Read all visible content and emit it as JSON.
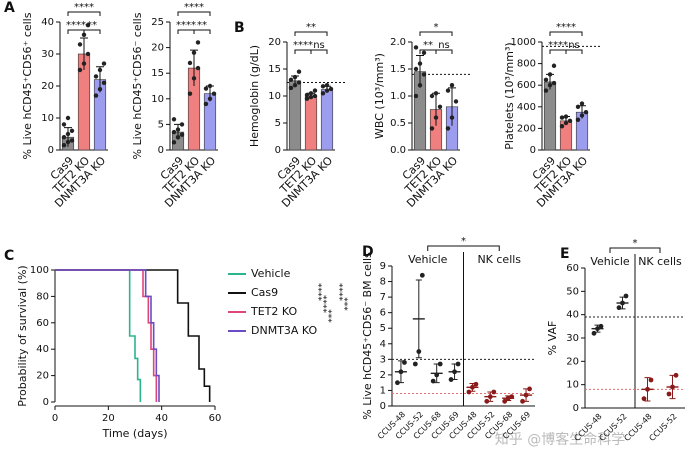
{
  "chart_data": [
    {
      "type": "bar",
      "panel": "A",
      "ylabel": "% Live hCD45⁺CD56⁺ cells",
      "categories": [
        "Cas9",
        "TET2 KO",
        "DNMT3A KO"
      ],
      "colors": [
        "#8c8c8c",
        "#f07f7f",
        "#9d9df0"
      ],
      "values": [
        4,
        30,
        22
      ],
      "errors": [
        3,
        5,
        4
      ],
      "points": [
        [
          1.5,
          2.5,
          3,
          4,
          5,
          6,
          8,
          10
        ],
        [
          25,
          27,
          30,
          33,
          36,
          39
        ],
        [
          17,
          19,
          21,
          23,
          25,
          27
        ]
      ],
      "ylim": [
        0,
        40
      ],
      "yticks": [
        0,
        10,
        20,
        30,
        40
      ],
      "comparisons": [
        {
          "pair": [
            0,
            2
          ],
          "label": "****"
        },
        {
          "pair": [
            0,
            1
          ],
          "label": "****"
        },
        {
          "pair": [
            1,
            2
          ],
          "label": "**"
        }
      ]
    },
    {
      "type": "bar",
      "ylabel": "% Live hCD45⁺CD56⁻ cells",
      "categories": [
        "Cas9",
        "TET2 KO",
        "DNMT3A KO"
      ],
      "colors": [
        "#8c8c8c",
        "#f07f7f",
        "#9d9df0"
      ],
      "values": [
        3.5,
        16,
        11
      ],
      "errors": [
        1.5,
        3.5,
        1.5
      ],
      "points": [
        [
          1.5,
          2.5,
          3,
          3.5,
          4,
          5,
          6
        ],
        [
          11,
          14,
          16,
          17,
          19,
          21
        ],
        [
          9,
          10,
          11,
          12,
          12.5
        ]
      ],
      "ylim": [
        0,
        25
      ],
      "yticks": [
        0,
        5,
        10,
        15,
        20,
        25
      ],
      "comparisons": [
        {
          "pair": [
            0,
            2
          ],
          "label": "****"
        },
        {
          "pair": [
            0,
            1
          ],
          "label": "****"
        },
        {
          "pair": [
            1,
            2
          ],
          "label": "**"
        }
      ]
    },
    {
      "type": "bar",
      "panel": "B",
      "ylabel": "Hemoglobin (g/dL)",
      "categories": [
        "Cas9",
        "TET2 KO",
        "DNMT3A KO"
      ],
      "colors": [
        "#8c8c8c",
        "#f07f7f",
        "#9d9df0"
      ],
      "values": [
        12.8,
        10,
        11.2
      ],
      "errors": [
        0.9,
        0.5,
        0.6
      ],
      "points": [
        [
          11.5,
          12,
          12.5,
          13,
          13.5,
          14.5
        ],
        [
          9.5,
          9.8,
          10,
          10.2,
          10.5,
          11
        ],
        [
          10.5,
          11,
          11.3,
          11.8,
          12
        ]
      ],
      "ylim": [
        0,
        20
      ],
      "yticks": [
        0,
        5,
        10,
        15,
        20
      ],
      "reference_line": 12.5,
      "comparisons": [
        {
          "pair": [
            0,
            2
          ],
          "label": "**"
        },
        {
          "pair": [
            0,
            1
          ],
          "label": "****"
        },
        {
          "pair": [
            1,
            2
          ],
          "label": "ns"
        }
      ]
    },
    {
      "type": "bar",
      "ylabel": "WBC (10³/mm³)",
      "categories": [
        "Cas9",
        "TET2 KO",
        "DNMT3A KO"
      ],
      "colors": [
        "#8c8c8c",
        "#f07f7f",
        "#9d9df0"
      ],
      "values": [
        1.45,
        0.75,
        0.8
      ],
      "errors": [
        0.3,
        0.3,
        0.35
      ],
      "points": [
        [
          1.0,
          1.2,
          1.4,
          1.5,
          1.6,
          1.8,
          1.9
        ],
        [
          0.4,
          0.6,
          0.8,
          1.0,
          1.05
        ],
        [
          0.4,
          0.6,
          0.9,
          1.1,
          1.2
        ]
      ],
      "ylim": [
        0,
        2
      ],
      "yticks": [
        {
          "value": 0,
          "label": "0.0"
        },
        0.5,
        {
          "value": 1,
          "label": "1.0"
        },
        1.5,
        {
          "value": 2,
          "label": "2.0"
        }
      ],
      "reference_line": 1.4,
      "comparisons": [
        {
          "pair": [
            0,
            2
          ],
          "label": "*"
        },
        {
          "pair": [
            0,
            1
          ],
          "label": "**"
        },
        {
          "pair": [
            1,
            2
          ],
          "label": "ns"
        }
      ]
    },
    {
      "type": "bar",
      "ylabel": "Platelets (10³/mm³)",
      "categories": [
        "Cas9",
        "TET2 KO",
        "DNMT3A KO"
      ],
      "colors": [
        "#8c8c8c",
        "#f07f7f",
        "#9d9df0"
      ],
      "values": [
        630,
        270,
        350
      ],
      "errors": [
        70,
        40,
        60
      ],
      "points": [
        [
          550,
          600,
          620,
          650,
          700,
          780
        ],
        [
          220,
          250,
          270,
          300,
          310
        ],
        [
          280,
          320,
          350,
          400,
          430
        ]
      ],
      "ylim": [
        0,
        1000
      ],
      "yticks": [
        0,
        200,
        400,
        600,
        800,
        1000
      ],
      "reference_line": 960,
      "comparisons": [
        {
          "pair": [
            0,
            2
          ],
          "label": "****"
        },
        {
          "pair": [
            0,
            1
          ],
          "label": "****"
        },
        {
          "pair": [
            1,
            2
          ],
          "label": "ns"
        }
      ]
    },
    {
      "type": "step",
      "panel": "C",
      "xlabel": "Time (days)",
      "ylabel": "Probability of survival (%)",
      "xlim": [
        0,
        60
      ],
      "xticks": [
        0,
        20,
        40,
        60
      ],
      "ylim": [
        0,
        100
      ],
      "yticks": [
        0,
        20,
        40,
        60,
        80,
        100
      ],
      "series": [
        {
          "name": "Vehicle",
          "color": "#2bb58f",
          "x": [
            0,
            28,
            30,
            31,
            32
          ],
          "y": [
            100,
            50,
            33,
            17,
            0
          ]
        },
        {
          "name": "Cas9",
          "color": "#111111",
          "x": [
            0,
            46,
            50,
            54,
            56,
            58
          ],
          "y": [
            100,
            75,
            50,
            25,
            12,
            0
          ]
        },
        {
          "name": "TET2 KO",
          "color": "#e0457a",
          "x": [
            0,
            33,
            35,
            36,
            37,
            38
          ],
          "y": [
            100,
            80,
            60,
            40,
            20,
            0
          ]
        },
        {
          "name": "DNMT3A KO",
          "color": "#6a4cc4",
          "x": [
            0,
            34,
            36,
            37,
            38,
            39
          ],
          "y": [
            100,
            80,
            60,
            40,
            20,
            0
          ]
        }
      ],
      "annotations": [
        "****",
        "****",
        "***",
        "****",
        "***"
      ]
    },
    {
      "type": "dot",
      "panel": "D",
      "ylabel": "% Live hCD45⁺CD56⁻ BM cells",
      "categories": [
        "CCUS-48",
        "CCUS-52",
        "CCUS-68",
        "CCUS-69"
      ],
      "ylim": [
        0,
        9
      ],
      "yticks": [
        0,
        1,
        2,
        3,
        4,
        5,
        6,
        7,
        8,
        9
      ],
      "comparison": "*",
      "reference_lines": [
        {
          "value": 3.0,
          "color": "#222222"
        },
        {
          "value": 0.8,
          "color": "#e07070"
        }
      ],
      "groups": [
        {
          "name": "Vehicle",
          "color": "#222222",
          "values": [
            2.2,
            5.6,
            2.1,
            2.2
          ],
          "errors": [
            0.7,
            2.5,
            0.6,
            0.5
          ],
          "points": [
            [
              1.5,
              2.2,
              2.8
            ],
            [
              2.7,
              3.5,
              8.4
            ],
            [
              1.6,
              2.0,
              2.7
            ],
            [
              1.7,
              2.2,
              2.7
            ]
          ]
        },
        {
          "name": "NK cells",
          "color": "#8b1a1a",
          "values": [
            1.2,
            0.6,
            0.5,
            0.7
          ],
          "errors": [
            0.25,
            0.3,
            0.15,
            0.4
          ],
          "points": [
            [
              0.9,
              1.2,
              1.4
            ],
            [
              0.3,
              0.6,
              0.9
            ],
            [
              0.3,
              0.5,
              0.6
            ],
            [
              0.3,
              0.7,
              1.1
            ]
          ]
        }
      ]
    },
    {
      "type": "dot",
      "panel": "E",
      "ylabel": "% VAF",
      "categories": [
        "CCUS-48",
        "CCUS-52"
      ],
      "ylim": [
        0,
        60
      ],
      "yticks": [
        0,
        10,
        20,
        30,
        40,
        50,
        60
      ],
      "comparison": "*",
      "reference_lines": [
        {
          "value": 39,
          "color": "#222222"
        },
        {
          "value": 8,
          "color": "#e07070"
        }
      ],
      "groups": [
        {
          "name": "Vehicle",
          "color": "#222222",
          "values": [
            34,
            45
          ],
          "errors": [
            1.5,
            2.5
          ],
          "points": [
            [
              32,
              34,
              35
            ],
            [
              43,
              45,
              48
            ]
          ]
        },
        {
          "name": "NK cells",
          "color": "#8b1a1a",
          "values": [
            8,
            9
          ],
          "errors": [
            5,
            5
          ],
          "points": [
            [
              4,
              8,
              12
            ],
            [
              6,
              9,
              14
            ]
          ]
        }
      ]
    }
  ],
  "watermark": "知乎 @博客生命科学"
}
